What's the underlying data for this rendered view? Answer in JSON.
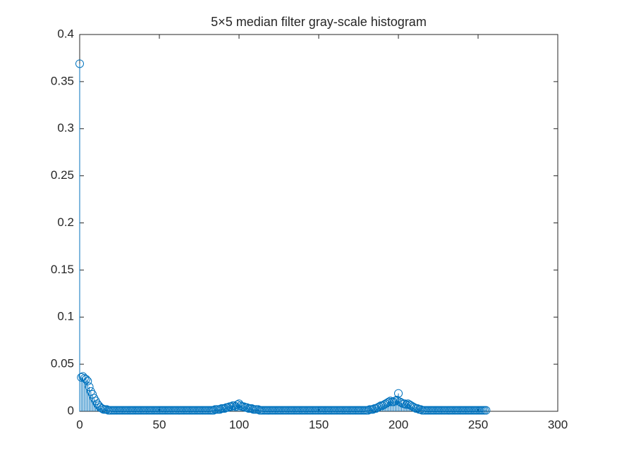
{
  "chart_data": {
    "type": "stem",
    "title": "5×5 median filter gray-scale histogram",
    "color": "#0072bd",
    "xlim": [
      0,
      300
    ],
    "xticks": [
      0,
      50,
      100,
      150,
      200,
      250,
      300
    ],
    "ylim": [
      0,
      0.4
    ],
    "yticks": [
      0,
      0.05,
      0.1,
      0.15,
      0.2,
      0.25,
      0.3,
      0.35,
      0.4
    ],
    "x": [
      0,
      1,
      2,
      3,
      4,
      5,
      6,
      7,
      8,
      9,
      10,
      11,
      12,
      13,
      14,
      15,
      16,
      17,
      18,
      19,
      20,
      21,
      22,
      23,
      24,
      25,
      26,
      27,
      28,
      29,
      30,
      31,
      32,
      33,
      34,
      35,
      36,
      37,
      38,
      39,
      40,
      41,
      42,
      43,
      44,
      45,
      46,
      47,
      48,
      49,
      50,
      51,
      52,
      53,
      54,
      55,
      56,
      57,
      58,
      59,
      60,
      61,
      62,
      63,
      64,
      65,
      66,
      67,
      68,
      69,
      70,
      71,
      72,
      73,
      74,
      75,
      76,
      77,
      78,
      79,
      80,
      81,
      82,
      83,
      84,
      85,
      86,
      87,
      88,
      89,
      90,
      91,
      92,
      93,
      94,
      95,
      96,
      97,
      98,
      99,
      100,
      101,
      102,
      103,
      104,
      105,
      106,
      107,
      108,
      109,
      110,
      111,
      112,
      113,
      114,
      115,
      116,
      117,
      118,
      119,
      120,
      121,
      122,
      123,
      124,
      125,
      126,
      127,
      128,
      129,
      130,
      131,
      132,
      133,
      134,
      135,
      136,
      137,
      138,
      139,
      140,
      141,
      142,
      143,
      144,
      145,
      146,
      147,
      148,
      149,
      150,
      151,
      152,
      153,
      154,
      155,
      156,
      157,
      158,
      159,
      160,
      161,
      162,
      163,
      164,
      165,
      166,
      167,
      168,
      169,
      170,
      171,
      172,
      173,
      174,
      175,
      176,
      177,
      178,
      179,
      180,
      181,
      182,
      183,
      184,
      185,
      186,
      187,
      188,
      189,
      190,
      191,
      192,
      193,
      194,
      195,
      196,
      197,
      198,
      199,
      200,
      201,
      202,
      203,
      204,
      205,
      206,
      207,
      208,
      209,
      210,
      211,
      212,
      213,
      214,
      215,
      216,
      217,
      218,
      219,
      220,
      221,
      222,
      223,
      224,
      225,
      226,
      227,
      228,
      229,
      230,
      231,
      232,
      233,
      234,
      235,
      236,
      237,
      238,
      239,
      240,
      241,
      242,
      243,
      244,
      245,
      246,
      247,
      248,
      249,
      250,
      251,
      252,
      253,
      254,
      255
    ],
    "values": [
      0.369,
      0.036,
      0.037,
      0.035,
      0.034,
      0.032,
      0.026,
      0.021,
      0.018,
      0.014,
      0.011,
      0.008,
      0.006,
      0.004,
      0.003,
      0.002,
      0.002,
      0.002,
      0.001,
      0.001,
      0.001,
      0.001,
      0.001,
      0.001,
      0.001,
      0.001,
      0.001,
      0.001,
      0.001,
      0.001,
      0.001,
      0.001,
      0.001,
      0.001,
      0.001,
      0.001,
      0.001,
      0.001,
      0.001,
      0.001,
      0.001,
      0.001,
      0.001,
      0.001,
      0.001,
      0.001,
      0.001,
      0.001,
      0.001,
      0.001,
      0.001,
      0.001,
      0.001,
      0.001,
      0.001,
      0.001,
      0.001,
      0.001,
      0.001,
      0.001,
      0.001,
      0.001,
      0.001,
      0.001,
      0.001,
      0.001,
      0.001,
      0.001,
      0.001,
      0.001,
      0.001,
      0.001,
      0.001,
      0.001,
      0.001,
      0.001,
      0.001,
      0.001,
      0.001,
      0.001,
      0.001,
      0.001,
      0.001,
      0.001,
      0.001,
      0.002,
      0.002,
      0.002,
      0.002,
      0.003,
      0.003,
      0.003,
      0.004,
      0.004,
      0.005,
      0.005,
      0.006,
      0.006,
      0.005,
      0.007,
      0.008,
      0.006,
      0.005,
      0.005,
      0.004,
      0.004,
      0.003,
      0.003,
      0.003,
      0.002,
      0.002,
      0.002,
      0.002,
      0.001,
      0.001,
      0.001,
      0.001,
      0.001,
      0.001,
      0.001,
      0.001,
      0.001,
      0.001,
      0.001,
      0.001,
      0.001,
      0.001,
      0.001,
      0.001,
      0.001,
      0.001,
      0.001,
      0.001,
      0.001,
      0.001,
      0.001,
      0.001,
      0.001,
      0.001,
      0.001,
      0.001,
      0.001,
      0.001,
      0.001,
      0.001,
      0.001,
      0.001,
      0.001,
      0.001,
      0.001,
      0.001,
      0.001,
      0.001,
      0.001,
      0.001,
      0.001,
      0.001,
      0.001,
      0.001,
      0.001,
      0.001,
      0.001,
      0.001,
      0.001,
      0.001,
      0.001,
      0.001,
      0.001,
      0.001,
      0.001,
      0.001,
      0.001,
      0.001,
      0.001,
      0.001,
      0.001,
      0.001,
      0.001,
      0.001,
      0.001,
      0.001,
      0.001,
      0.002,
      0.002,
      0.002,
      0.003,
      0.003,
      0.004,
      0.005,
      0.006,
      0.006,
      0.007,
      0.008,
      0.009,
      0.01,
      0.011,
      0.01,
      0.01,
      0.011,
      0.012,
      0.019,
      0.01,
      0.009,
      0.008,
      0.008,
      0.007,
      0.008,
      0.007,
      0.006,
      0.005,
      0.004,
      0.003,
      0.003,
      0.002,
      0.002,
      0.001,
      0.001,
      0.001,
      0.001,
      0.001,
      0.001,
      0.001,
      0.001,
      0.001,
      0.001,
      0.001,
      0.001,
      0.001,
      0.001,
      0.001,
      0.001,
      0.001,
      0.001,
      0.001,
      0.001,
      0.001,
      0.001,
      0.001,
      0.001,
      0.001,
      0.001,
      0.001,
      0.001,
      0.001,
      0.001,
      0.001,
      0.001,
      0.001,
      0.001,
      0.001,
      0.001,
      0.001,
      0.001,
      0.001,
      0.001,
      0.001
    ]
  }
}
